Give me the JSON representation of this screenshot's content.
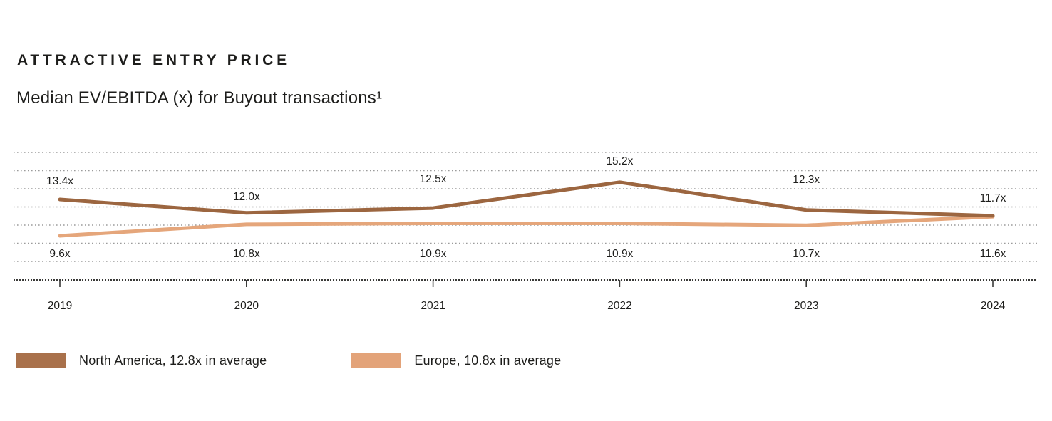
{
  "header": {
    "title": "ATTRACTIVE ENTRY PRICE",
    "subtitle": "Median EV/EBITDA (x) for Buyout transactions¹"
  },
  "chart_data": {
    "type": "line",
    "title": "ATTRACTIVE ENTRY PRICE",
    "subtitle": "Median EV/EBITDA (x) for Buyout transactions¹",
    "categories": [
      "2019",
      "2020",
      "2021",
      "2022",
      "2023",
      "2024"
    ],
    "value_suffix": "x",
    "grid": "horizontal-dotted",
    "gridline_count": 7,
    "y_axis_labels": "none",
    "legend_position": "bottom-left",
    "series": [
      {
        "name": "North America",
        "color": "#9C6640",
        "values": [
          13.4,
          12.0,
          12.5,
          15.2,
          12.3,
          11.7
        ],
        "labels": [
          "13.4x",
          "12.0x",
          "12.5x",
          "15.2x",
          "12.3x",
          "11.7x"
        ],
        "label_placement": "above"
      },
      {
        "name": "Europe",
        "color": "#E5A67B",
        "values": [
          9.6,
          10.8,
          10.9,
          10.9,
          10.7,
          11.6
        ],
        "labels": [
          "9.6x",
          "10.8x",
          "10.9x",
          "10.9x",
          "10.7x",
          "11.6x"
        ],
        "label_placement": "below"
      }
    ]
  },
  "legend": {
    "items": [
      {
        "label": "North America, 12.8x in average",
        "color": "#A9714B"
      },
      {
        "label": "Europe, 10.8x in average",
        "color": "#E3A379"
      }
    ]
  },
  "colors": {
    "text": "#1d1d1b",
    "gridline": "#9b9b9b",
    "axis": "#3a3a38"
  }
}
